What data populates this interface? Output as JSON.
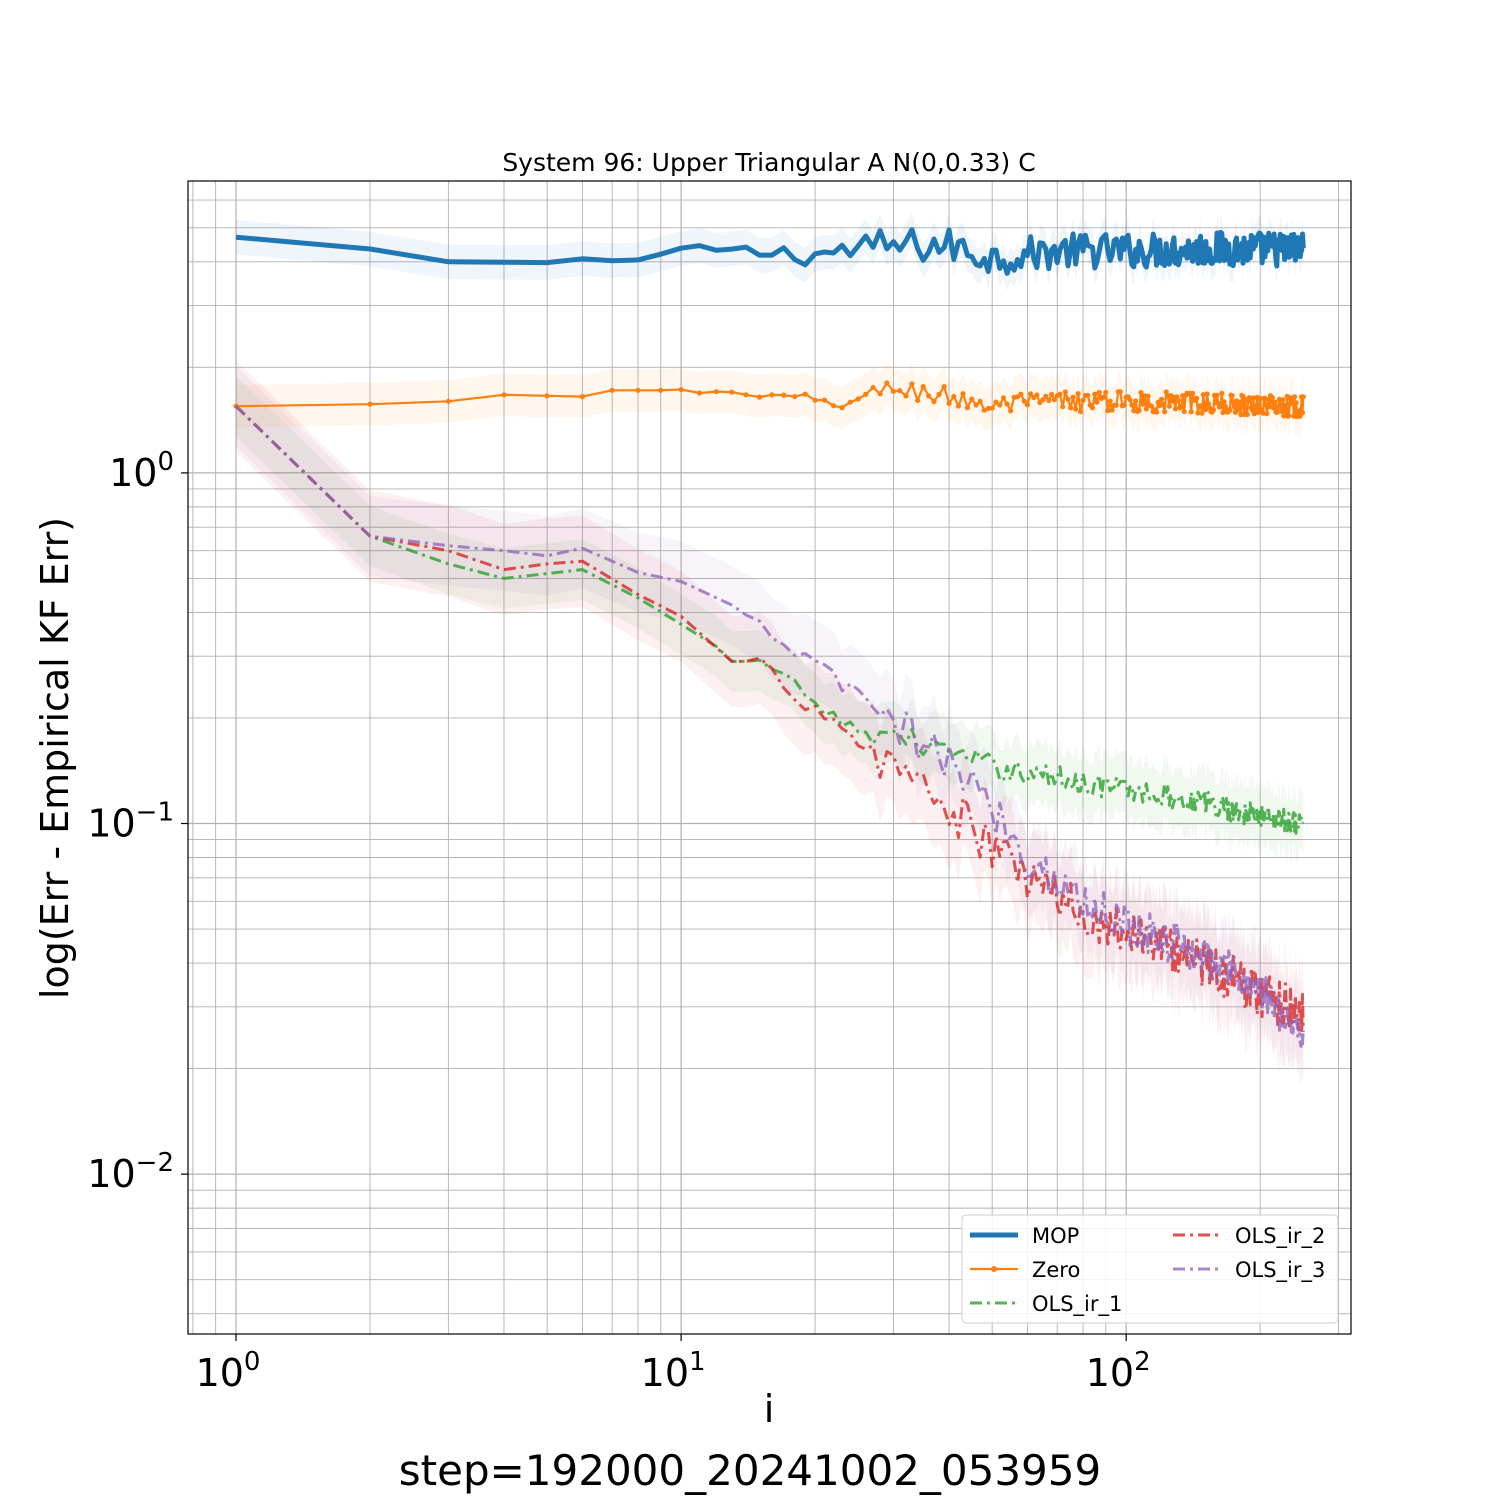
{
  "chart_data": {
    "type": "line",
    "title": "System 96: Upper Triangular A N(0,0.33) C",
    "xlabel": "i",
    "ylabel": "log(Err - Empirical KF Err)",
    "footer": "step=192000_20241002_053959",
    "xscale": "log",
    "yscale": "log",
    "xlim": [
      0.78,
      320
    ],
    "ylim": [
      0.0035,
      6.8
    ],
    "x_max": 250,
    "grid": true,
    "legend_placement": "lower-right",
    "x_ticks": [
      {
        "value": 1,
        "base": "10",
        "exp": "0"
      },
      {
        "value": 10,
        "base": "10",
        "exp": "1"
      },
      {
        "value": 100,
        "base": "10",
        "exp": "2"
      }
    ],
    "y_ticks": [
      {
        "value": 0.01,
        "base": "10",
        "exp": "−2"
      },
      {
        "value": 0.1,
        "base": "10",
        "exp": "−1"
      },
      {
        "value": 1,
        "base": "10",
        "exp": "0"
      }
    ],
    "series": [
      {
        "name": "MOP",
        "color": "#1f77b4",
        "style": "solid-thick",
        "band_rel": 0.12,
        "noise": 0.05,
        "noise_start": 10,
        "anchors": [
          [
            1,
            4.7
          ],
          [
            2,
            4.35
          ],
          [
            3,
            4.0
          ],
          [
            5,
            3.98
          ],
          [
            6,
            4.08
          ],
          [
            7,
            4.03
          ],
          [
            8,
            4.05
          ],
          [
            10,
            4.35
          ],
          [
            15,
            4.25
          ],
          [
            20,
            4.2
          ],
          [
            30,
            4.45
          ],
          [
            40,
            4.45
          ],
          [
            50,
            4.1
          ],
          [
            70,
            4.3
          ],
          [
            100,
            4.3
          ],
          [
            150,
            4.35
          ],
          [
            250,
            4.35
          ]
        ]
      },
      {
        "name": "Zero",
        "color": "#ff7f0e",
        "style": "solid-dots",
        "band_rel": 0.15,
        "noise": 0.03,
        "noise_start": 10,
        "anchors": [
          [
            1,
            1.55
          ],
          [
            2,
            1.57
          ],
          [
            3,
            1.6
          ],
          [
            4,
            1.67
          ],
          [
            6,
            1.65
          ],
          [
            7,
            1.72
          ],
          [
            10,
            1.72
          ],
          [
            15,
            1.65
          ],
          [
            20,
            1.6
          ],
          [
            25,
            1.6
          ],
          [
            30,
            1.75
          ],
          [
            40,
            1.65
          ],
          [
            50,
            1.55
          ],
          [
            70,
            1.6
          ],
          [
            100,
            1.6
          ],
          [
            150,
            1.58
          ],
          [
            250,
            1.55
          ]
        ]
      },
      {
        "name": "OLS_ir_1",
        "color": "#2ca02c",
        "style": "dashdot",
        "band_rel": 0.22,
        "noise": 0.035,
        "noise_start": 15,
        "anchors": [
          [
            1,
            1.55
          ],
          [
            2,
            0.66
          ],
          [
            3,
            0.55
          ],
          [
            4,
            0.5
          ],
          [
            6,
            0.53
          ],
          [
            8,
            0.44
          ],
          [
            10,
            0.37
          ],
          [
            12,
            0.32
          ],
          [
            13,
            0.29
          ],
          [
            15,
            0.29
          ],
          [
            18,
            0.25
          ],
          [
            20,
            0.22
          ],
          [
            25,
            0.18
          ],
          [
            30,
            0.18
          ],
          [
            40,
            0.16
          ],
          [
            50,
            0.145
          ],
          [
            70,
            0.135
          ],
          [
            100,
            0.125
          ],
          [
            150,
            0.115
          ],
          [
            200,
            0.105
          ],
          [
            250,
            0.1
          ]
        ]
      },
      {
        "name": "OLS_ir_2",
        "color": "#d62728",
        "style": "dashdot",
        "band_rel": 0.35,
        "noise": 0.07,
        "noise_start": 15,
        "anchors": [
          [
            1,
            1.55
          ],
          [
            2,
            0.66
          ],
          [
            3,
            0.6
          ],
          [
            4,
            0.53
          ],
          [
            5,
            0.55
          ],
          [
            6,
            0.56
          ],
          [
            8,
            0.45
          ],
          [
            10,
            0.39
          ],
          [
            13,
            0.29
          ],
          [
            15,
            0.29
          ],
          [
            20,
            0.21
          ],
          [
            25,
            0.16
          ],
          [
            30,
            0.15
          ],
          [
            40,
            0.11
          ],
          [
            50,
            0.085
          ],
          [
            60,
            0.07
          ],
          [
            80,
            0.055
          ],
          [
            100,
            0.05
          ],
          [
            150,
            0.04
          ],
          [
            200,
            0.033
          ],
          [
            250,
            0.029
          ]
        ]
      },
      {
        "name": "OLS_ir_3",
        "color": "#9467bd",
        "style": "dashdot",
        "band_rel": 0.3,
        "noise": 0.06,
        "noise_start": 15,
        "anchors": [
          [
            1,
            1.55
          ],
          [
            2,
            0.66
          ],
          [
            3,
            0.62
          ],
          [
            4,
            0.6
          ],
          [
            5,
            0.58
          ],
          [
            6,
            0.61
          ],
          [
            8,
            0.52
          ],
          [
            10,
            0.49
          ],
          [
            13,
            0.42
          ],
          [
            15,
            0.37
          ],
          [
            20,
            0.28
          ],
          [
            25,
            0.23
          ],
          [
            30,
            0.19
          ],
          [
            40,
            0.15
          ],
          [
            50,
            0.11
          ],
          [
            60,
            0.08
          ],
          [
            80,
            0.06
          ],
          [
            100,
            0.052
          ],
          [
            150,
            0.042
          ],
          [
            200,
            0.033
          ],
          [
            250,
            0.025
          ]
        ]
      }
    ]
  }
}
